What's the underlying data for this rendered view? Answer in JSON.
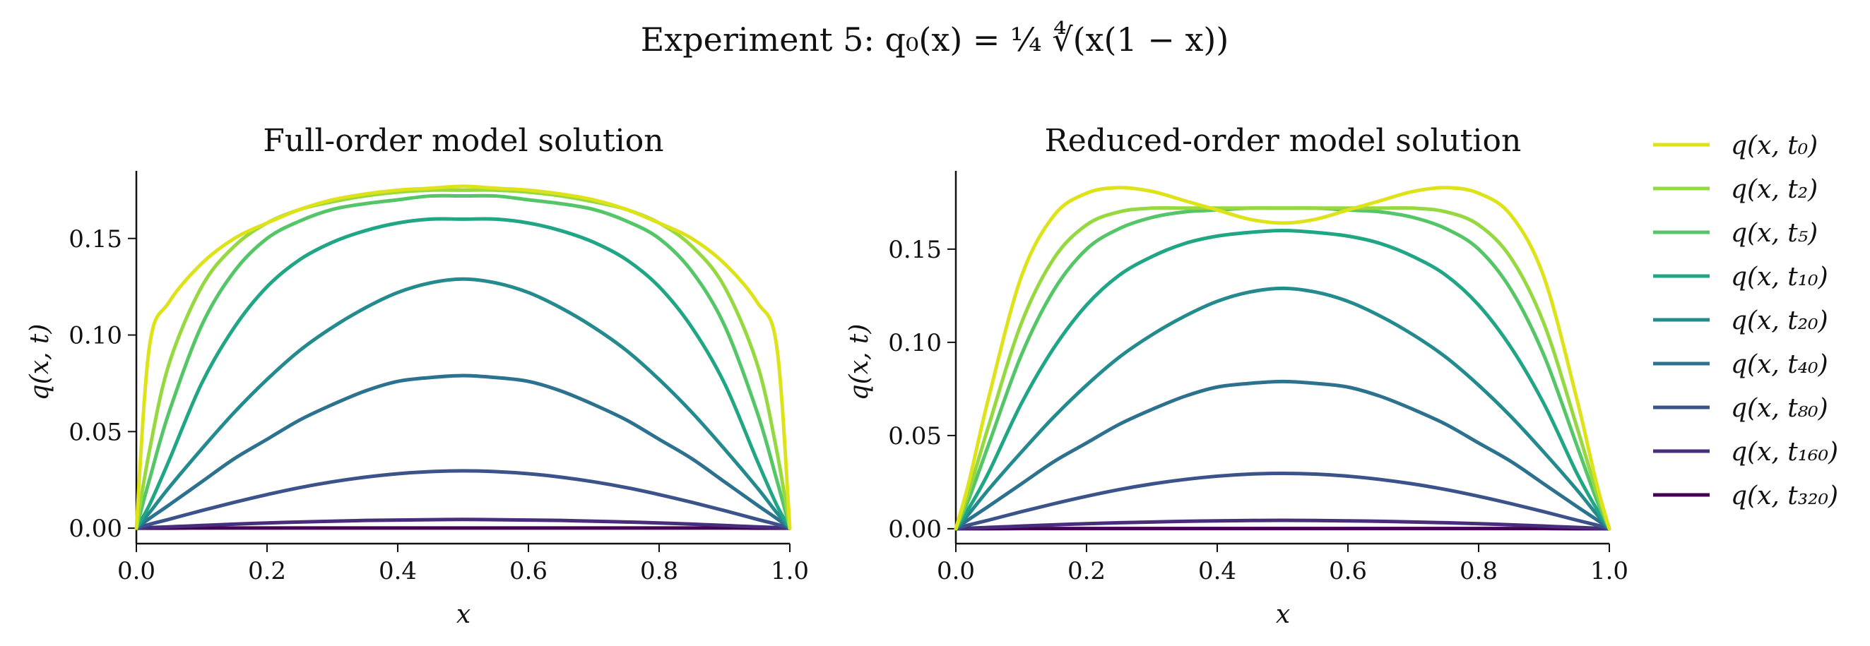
{
  "figure": {
    "title": "Experiment 5: q₀(x) = ¼ ∜(x(1 − x))"
  },
  "chart_data": [
    {
      "type": "line",
      "title": "Full-order model solution",
      "xlabel": "x",
      "ylabel": "q(x, t)",
      "xlim": [
        0.0,
        1.0
      ],
      "ylim": [
        -0.008,
        0.185
      ],
      "xticks": [
        "0.0",
        "0.2",
        "0.4",
        "0.6",
        "0.8",
        "1.0"
      ],
      "yticks": [
        "0.00",
        "0.05",
        "0.10",
        "0.15"
      ],
      "grid": false,
      "x": [
        0,
        0.02,
        0.05,
        0.1,
        0.15,
        0.2,
        0.25,
        0.3,
        0.35,
        0.4,
        0.45,
        0.5,
        0.55,
        0.6,
        0.65,
        0.7,
        0.75,
        0.8,
        0.85,
        0.9,
        0.95,
        0.98,
        1.0
      ],
      "series": [
        {
          "name": "q(x, t₀)",
          "color": "#dde318",
          "values": [
            0,
            0.094,
            0.117,
            0.137,
            0.15,
            0.158,
            0.165,
            0.17,
            0.173,
            0.175,
            0.176,
            0.177,
            0.176,
            0.175,
            0.173,
            0.17,
            0.165,
            0.158,
            0.15,
            0.137,
            0.117,
            0.094,
            0
          ]
        },
        {
          "name": "q(x, t₂)",
          "color": "#95d840",
          "values": [
            0,
            0.04,
            0.085,
            0.125,
            0.146,
            0.158,
            0.165,
            0.169,
            0.172,
            0.174,
            0.175,
            0.175,
            0.175,
            0.174,
            0.172,
            0.169,
            0.165,
            0.158,
            0.146,
            0.125,
            0.085,
            0.04,
            0
          ]
        },
        {
          "name": "q(x, t₅)",
          "color": "#55c667",
          "values": [
            0,
            0.025,
            0.06,
            0.105,
            0.133,
            0.15,
            0.159,
            0.165,
            0.168,
            0.17,
            0.172,
            0.172,
            0.172,
            0.17,
            0.168,
            0.165,
            0.159,
            0.15,
            0.133,
            0.105,
            0.06,
            0.025,
            0
          ]
        },
        {
          "name": "q(x, t₁₀)",
          "color": "#21a685",
          "values": [
            0,
            0.012,
            0.035,
            0.075,
            0.104,
            0.125,
            0.139,
            0.148,
            0.154,
            0.158,
            0.16,
            0.16,
            0.16,
            0.158,
            0.154,
            0.148,
            0.139,
            0.125,
            0.104,
            0.075,
            0.035,
            0.012,
            0
          ]
        },
        {
          "name": "q(x, t₂₀)",
          "color": "#238a8d",
          "values": [
            0,
            0.008,
            0.021,
            0.041,
            0.06,
            0.077,
            0.092,
            0.104,
            0.114,
            0.122,
            0.127,
            0.129,
            0.127,
            0.122,
            0.114,
            0.104,
            0.092,
            0.077,
            0.06,
            0.041,
            0.021,
            0.008,
            0
          ]
        },
        {
          "name": "q(x, t₄₀)",
          "color": "#2c718e",
          "values": [
            0,
            0.005,
            0.012,
            0.024,
            0.036,
            0.046,
            0.056,
            0.064,
            0.071,
            0.076,
            0.078,
            0.079,
            0.078,
            0.076,
            0.071,
            0.064,
            0.056,
            0.046,
            0.036,
            0.024,
            0.012,
            0.005,
            0
          ]
        },
        {
          "name": "q(x, t₈₀)",
          "color": "#3b528b",
          "values": [
            0,
            0.002,
            0.0046,
            0.0091,
            0.0134,
            0.0174,
            0.021,
            0.024,
            0.0264,
            0.0282,
            0.0293,
            0.0297,
            0.0293,
            0.0282,
            0.0264,
            0.024,
            0.021,
            0.0174,
            0.0134,
            0.0091,
            0.0046,
            0.002,
            0
          ]
        },
        {
          "name": "q(x, t₁₆₀)",
          "color": "#472d7b",
          "values": [
            0,
            0.0003,
            0.0007,
            0.0014,
            0.0021,
            0.0027,
            0.0032,
            0.0036,
            0.004,
            0.0042,
            0.0044,
            0.0045,
            0.0044,
            0.0042,
            0.004,
            0.0036,
            0.0032,
            0.0027,
            0.0021,
            0.0014,
            0.0007,
            0.0003,
            0
          ]
        },
        {
          "name": "q(x, t₃₂₀)",
          "color": "#440154",
          "values": [
            0,
            0.0,
            0.0,
            0.0001,
            0.0001,
            0.0001,
            0.0001,
            0.0001,
            0.0001,
            0.0001,
            0.0001,
            0.0001,
            0.0001,
            0.0001,
            0.0001,
            0.0001,
            0.0001,
            0.0001,
            0.0001,
            0.0001,
            0.0,
            0.0,
            0
          ]
        }
      ]
    },
    {
      "type": "line",
      "title": "Reduced-order model solution",
      "xlabel": "x",
      "ylabel": "q(x, t)",
      "xlim": [
        0.0,
        1.0
      ],
      "ylim": [
        -0.008,
        0.192
      ],
      "xticks": [
        "0.0",
        "0.2",
        "0.4",
        "0.6",
        "0.8",
        "1.0"
      ],
      "yticks": [
        "0.00",
        "0.05",
        "0.10",
        "0.15"
      ],
      "grid": false,
      "x": [
        0,
        0.02,
        0.05,
        0.1,
        0.15,
        0.2,
        0.25,
        0.3,
        0.35,
        0.4,
        0.45,
        0.5,
        0.55,
        0.6,
        0.65,
        0.7,
        0.75,
        0.8,
        0.85,
        0.9,
        0.95,
        0.98,
        1.0
      ],
      "series": [
        {
          "name": "q(x, t₀)",
          "color": "#dde318",
          "values": [
            0,
            0.025,
            0.07,
            0.135,
            0.168,
            0.18,
            0.183,
            0.181,
            0.176,
            0.171,
            0.166,
            0.164,
            0.166,
            0.171,
            0.176,
            0.181,
            0.183,
            0.18,
            0.168,
            0.135,
            0.07,
            0.025,
            0
          ]
        },
        {
          "name": "q(x, t₂)",
          "color": "#95d840",
          "values": [
            0,
            0.02,
            0.055,
            0.11,
            0.145,
            0.163,
            0.17,
            0.172,
            0.172,
            0.172,
            0.172,
            0.172,
            0.172,
            0.172,
            0.172,
            0.172,
            0.17,
            0.163,
            0.145,
            0.11,
            0.055,
            0.02,
            0
          ]
        },
        {
          "name": "q(x, t₅)",
          "color": "#55c667",
          "values": [
            0,
            0.016,
            0.045,
            0.093,
            0.128,
            0.15,
            0.161,
            0.167,
            0.17,
            0.171,
            0.172,
            0.172,
            0.172,
            0.171,
            0.17,
            0.167,
            0.161,
            0.15,
            0.128,
            0.093,
            0.045,
            0.016,
            0
          ]
        },
        {
          "name": "q(x, t₁₀)",
          "color": "#21a685",
          "values": [
            0,
            0.011,
            0.03,
            0.067,
            0.097,
            0.12,
            0.136,
            0.146,
            0.153,
            0.157,
            0.159,
            0.16,
            0.159,
            0.157,
            0.153,
            0.146,
            0.136,
            0.12,
            0.097,
            0.067,
            0.03,
            0.011,
            0
          ]
        },
        {
          "name": "q(x, t₂₀)",
          "color": "#238a8d",
          "values": [
            0,
            0.008,
            0.021,
            0.041,
            0.06,
            0.077,
            0.092,
            0.104,
            0.114,
            0.122,
            0.127,
            0.129,
            0.127,
            0.122,
            0.114,
            0.104,
            0.092,
            0.077,
            0.06,
            0.041,
            0.021,
            0.008,
            0
          ]
        },
        {
          "name": "q(x, t₄₀)",
          "color": "#2c718e",
          "values": [
            0,
            0.005,
            0.012,
            0.024,
            0.036,
            0.046,
            0.056,
            0.064,
            0.071,
            0.076,
            0.078,
            0.079,
            0.078,
            0.076,
            0.071,
            0.064,
            0.056,
            0.046,
            0.036,
            0.024,
            0.012,
            0.005,
            0
          ]
        },
        {
          "name": "q(x, t₈₀)",
          "color": "#3b528b",
          "values": [
            0,
            0.002,
            0.0046,
            0.0091,
            0.0134,
            0.0174,
            0.021,
            0.024,
            0.0264,
            0.0282,
            0.0293,
            0.0297,
            0.0293,
            0.0282,
            0.0264,
            0.024,
            0.021,
            0.0174,
            0.0134,
            0.0091,
            0.0046,
            0.002,
            0
          ]
        },
        {
          "name": "q(x, t₁₆₀)",
          "color": "#472d7b",
          "values": [
            0,
            0.0003,
            0.0007,
            0.0014,
            0.0021,
            0.0027,
            0.0032,
            0.0036,
            0.004,
            0.0042,
            0.0044,
            0.0045,
            0.0044,
            0.0042,
            0.004,
            0.0036,
            0.0032,
            0.0027,
            0.0021,
            0.0014,
            0.0007,
            0.0003,
            0
          ]
        },
        {
          "name": "q(x, t₃₂₀)",
          "color": "#440154",
          "values": [
            0,
            0.0,
            0.0,
            0.0001,
            0.0001,
            0.0001,
            0.0001,
            0.0001,
            0.0001,
            0.0001,
            0.0001,
            0.0001,
            0.0001,
            0.0001,
            0.0001,
            0.0001,
            0.0001,
            0.0001,
            0.0001,
            0.0001,
            0.0,
            0.0,
            0
          ]
        }
      ]
    }
  ]
}
